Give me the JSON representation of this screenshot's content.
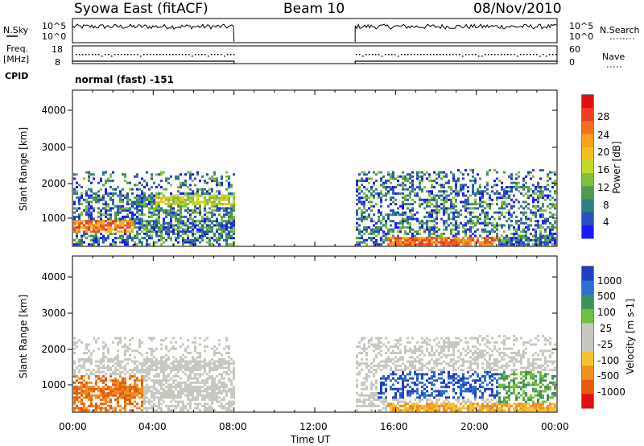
{
  "header": {
    "station": "Syowa East (fitACF)",
    "beam": "Beam 10",
    "date": "08/Nov/2010"
  },
  "side_labels": {
    "nsky": "N.Sky",
    "nsearch": "N.Search",
    "freq_top": "Freq.",
    "freq_unit": "[MHz]",
    "nave": "Nave",
    "cpid": "CPID",
    "cpid_value": "normal (fast) -151"
  },
  "noise_panel": {
    "ticks_left": [
      "10^5",
      "10^0"
    ],
    "ticks_right": [
      "10^5",
      "10^0"
    ]
  },
  "freq_panel": {
    "ticks_left": [
      "18",
      "8"
    ],
    "ticks_right": [
      "60",
      "0"
    ]
  },
  "power_panel": {
    "ylabel": "Slant Range [km]",
    "yticks": [
      "4000",
      "3000",
      "2000",
      "1000"
    ],
    "colorbar_label": "Power [dB]",
    "colorbar_ticks": [
      "28",
      "24",
      "20",
      "16",
      "12",
      "8",
      "4"
    ],
    "colors": [
      "#1a1aff",
      "#2a4fbf",
      "#2e7f7f",
      "#4f9a50",
      "#7fbf3f",
      "#bfd92f",
      "#f0c020",
      "#f8a020",
      "#f07020",
      "#e84020",
      "#e01010"
    ]
  },
  "velocity_panel": {
    "ylabel": "Slant Range [km]",
    "yticks": [
      "4000",
      "3000",
      "2000",
      "1000"
    ],
    "colorbar_label": "Velocity [m s-1]",
    "colorbar_ticks": [
      "1000",
      "500",
      "100",
      "25",
      "-25",
      "-100",
      "-500",
      "-1000"
    ],
    "colors": [
      "#2040c0",
      "#2e6fd0",
      "#3f8f5f",
      "#6fbf40",
      "#c8c8c0",
      "#c8c8c0",
      "#f8c030",
      "#f09020",
      "#e85a10",
      "#e01010"
    ]
  },
  "xaxis": {
    "label": "Time UT",
    "ticks": [
      "00:00",
      "04:00",
      "08:00",
      "12:00",
      "16:00",
      "20:00",
      "00:00"
    ]
  },
  "chart_data": {
    "type": "heatmap",
    "title": "Syowa East (fitACF)",
    "x_range_hours": [
      0,
      24
    ],
    "y_range_km": [
      180,
      4600
    ],
    "data_gaps_hours": [
      [
        8,
        14
      ]
    ],
    "panels": [
      {
        "name": "Power",
        "unit": "dB",
        "range": [
          0,
          30
        ]
      },
      {
        "name": "Velocity",
        "unit": "m s-1",
        "range": [
          -1000,
          1000
        ]
      }
    ]
  }
}
